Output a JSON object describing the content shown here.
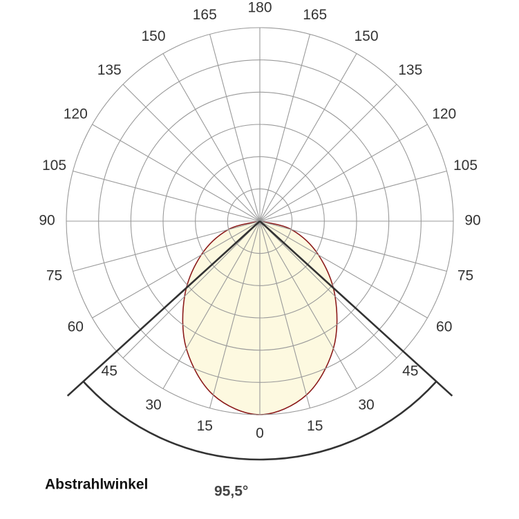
{
  "chart_data": {
    "type": "polar",
    "angles": [
      -90,
      -75,
      -60,
      -45,
      -30,
      -15,
      0,
      15,
      30,
      45,
      60,
      75,
      90
    ],
    "values": [
      0,
      17,
      35,
      55,
      76,
      93,
      100,
      93,
      76,
      55,
      35,
      17,
      0
    ],
    "rlim": [
      0,
      100
    ],
    "rings": 6,
    "thetaticks": [
      0,
      15,
      30,
      45,
      60,
      75,
      90,
      105,
      120,
      135,
      150,
      165,
      180
    ],
    "fill": "#fdf9e0",
    "color": "#8b1a1a",
    "beam_angle_text": "Abstrahlwinkel",
    "beam_angle": 95.5,
    "beam_angle_label": "95,5°"
  }
}
